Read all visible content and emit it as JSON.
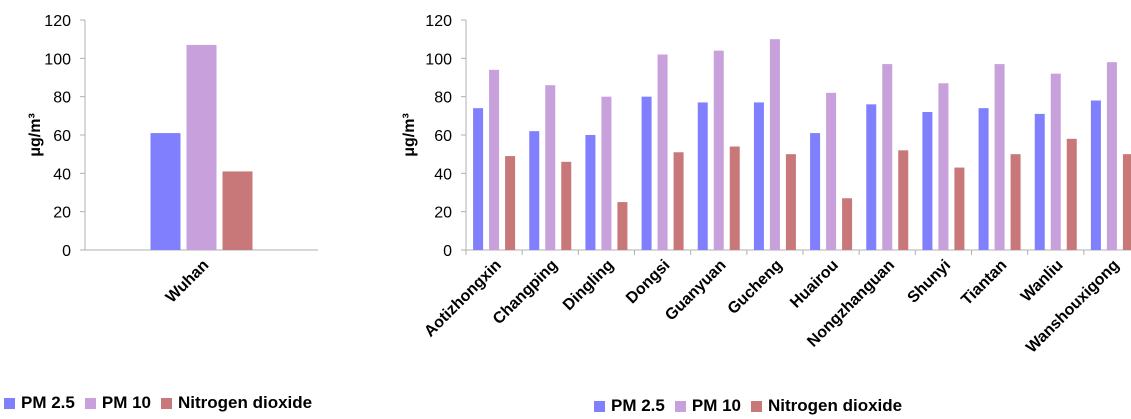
{
  "colors": {
    "pm25": "#8080ff",
    "pm10": "#c8a0dc",
    "no2": "#c87878"
  },
  "chart_data": [
    {
      "type": "bar",
      "categories": [
        "Wuhan"
      ],
      "series": [
        {
          "name": "PM 2.5",
          "values": [
            61
          ]
        },
        {
          "name": "PM 10",
          "values": [
            107
          ]
        },
        {
          "name": "Nitrogen dioxide",
          "values": [
            41
          ]
        }
      ],
      "ylabel": "μg/m³",
      "ylim": [
        0,
        120
      ],
      "yticks": [
        "0",
        "20",
        "40",
        "60",
        "80",
        "100",
        "120"
      ],
      "legend_position": "bottom",
      "grid": false
    },
    {
      "type": "bar",
      "categories": [
        "Aotizhongxin",
        "Changping",
        "Dingling",
        "Dongsi",
        "Guanyuan",
        "Gucheng",
        "Huairou",
        "Nongzhanguan",
        "Shunyi",
        "Tiantan",
        "Wanliu",
        "Wanshouxigong"
      ],
      "series": [
        {
          "name": "PM 2.5",
          "values": [
            74,
            62,
            60,
            80,
            77,
            77,
            61,
            76,
            72,
            74,
            71,
            78
          ]
        },
        {
          "name": "PM 10",
          "values": [
            94,
            86,
            80,
            102,
            104,
            110,
            82,
            97,
            87,
            97,
            92,
            98
          ]
        },
        {
          "name": "Nitrogen dioxide",
          "values": [
            49,
            46,
            25,
            51,
            54,
            50,
            27,
            52,
            43,
            50,
            58,
            50
          ]
        }
      ],
      "ylabel": "μg/m³",
      "ylim": [
        0,
        120
      ],
      "yticks": [
        "0",
        "20",
        "40",
        "60",
        "80",
        "100",
        "120"
      ],
      "legend_position": "bottom",
      "grid": false
    }
  ]
}
